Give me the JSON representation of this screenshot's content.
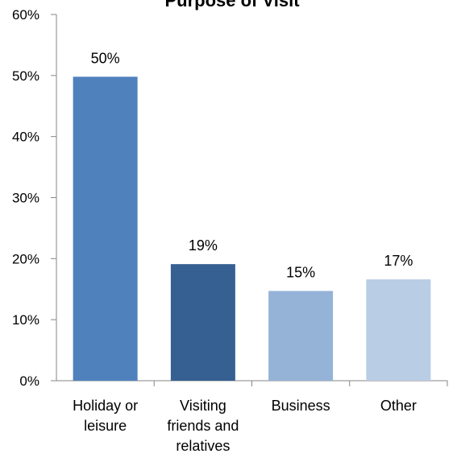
{
  "chart_data": {
    "type": "bar",
    "title": "Purpose of Visit",
    "categories": [
      "Holiday or leisure",
      "Visiting friends and relatives",
      "Business",
      "Other"
    ],
    "category_label_lines": [
      [
        "Holiday or",
        "leisure"
      ],
      [
        "Visiting",
        "friends and",
        "relatives"
      ],
      [
        "Business"
      ],
      [
        "Other"
      ]
    ],
    "values": [
      50,
      19,
      15,
      17
    ],
    "plotted_values": [
      49.8,
      19.1,
      14.7,
      16.6
    ],
    "data_labels": [
      "50%",
      "19%",
      "15%",
      "17%"
    ],
    "bar_colors": [
      "#4F81BD",
      "#366092",
      "#95B3D7",
      "#B9CDE5"
    ],
    "ylim": [
      0,
      60
    ],
    "y_ticks": [
      0,
      10,
      20,
      30,
      40,
      50,
      60
    ],
    "y_tick_labels": [
      "0%",
      "10%",
      "20%",
      "30%",
      "40%",
      "50%",
      "60%"
    ],
    "xlabel": "",
    "ylabel": "",
    "grid": false,
    "legend": "none"
  }
}
